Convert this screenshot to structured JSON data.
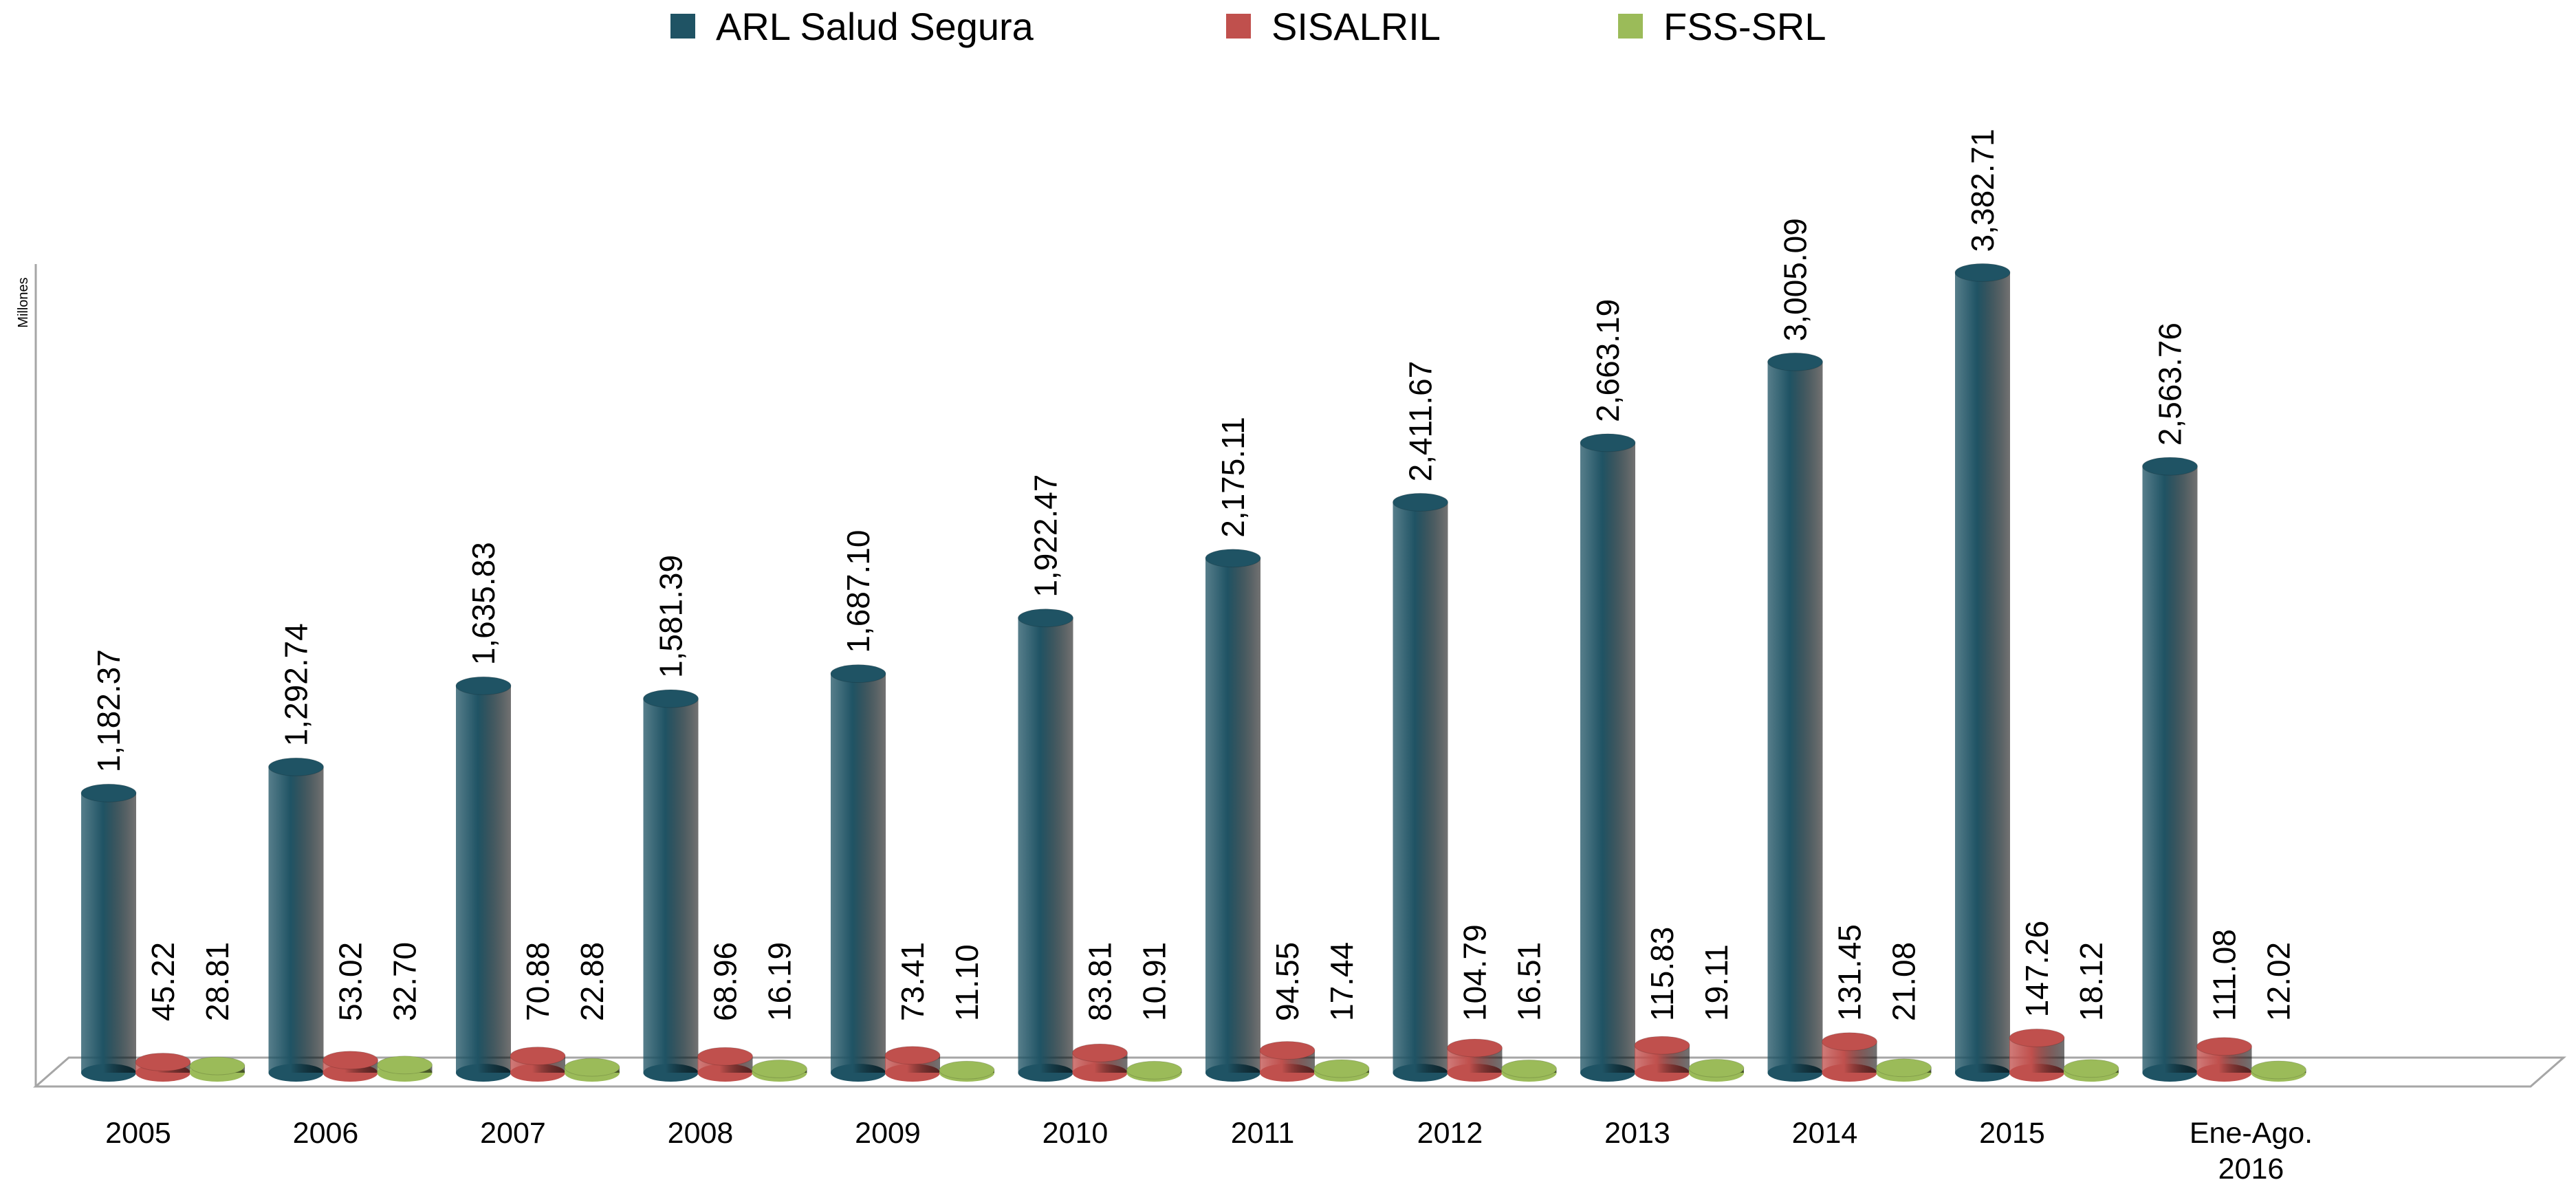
{
  "chart_data": {
    "type": "bar3d",
    "y_label": "Millones",
    "categories": [
      "2005",
      "2006",
      "2007",
      "2008",
      "2009",
      "2010",
      "2011",
      "2012",
      "2013",
      "2014",
      "2015",
      "Ene-Ago. 2016"
    ],
    "series": [
      {
        "name": "ARL Salud Segura",
        "color": "#1f5364",
        "values": [
          1182.37,
          1292.74,
          1635.83,
          1581.39,
          1687.1,
          1922.47,
          2175.11,
          2411.67,
          2663.19,
          3005.09,
          3382.71,
          2563.76
        ],
        "value_labels": [
          "1,182.37",
          "1,292.74",
          "1,635.83",
          "1,581.39",
          "1,687.10",
          "1,922.47",
          "2,175.11",
          "2,411.67",
          "2,663.19",
          "3,005.09",
          "3,382.71",
          "2,563.76"
        ]
      },
      {
        "name": "SISALRIL",
        "color": "#c0504d",
        "values": [
          45.22,
          53.02,
          70.88,
          68.96,
          73.41,
          83.81,
          94.55,
          104.79,
          115.83,
          131.45,
          147.26,
          111.08
        ],
        "value_labels": [
          "45.22",
          "53.02",
          "70.88",
          "68.96",
          "73.41",
          "83.81",
          "94.55",
          "104.79",
          "115.83",
          "131.45",
          "147.26",
          "111.08"
        ]
      },
      {
        "name": "FSS-SRL",
        "color": "#9bbb59",
        "values": [
          28.81,
          32.7,
          22.88,
          16.19,
          11.1,
          10.91,
          17.44,
          16.51,
          19.11,
          21.08,
          18.12,
          12.02
        ],
        "value_labels": [
          "28.81",
          "32.70",
          "22.88",
          "16.19",
          "11.10",
          "10.91",
          "17.44",
          "16.51",
          "19.11",
          "21.08",
          "18.12",
          "12.02"
        ]
      }
    ],
    "ylim": [
      0,
      3500
    ],
    "legend": "top"
  }
}
